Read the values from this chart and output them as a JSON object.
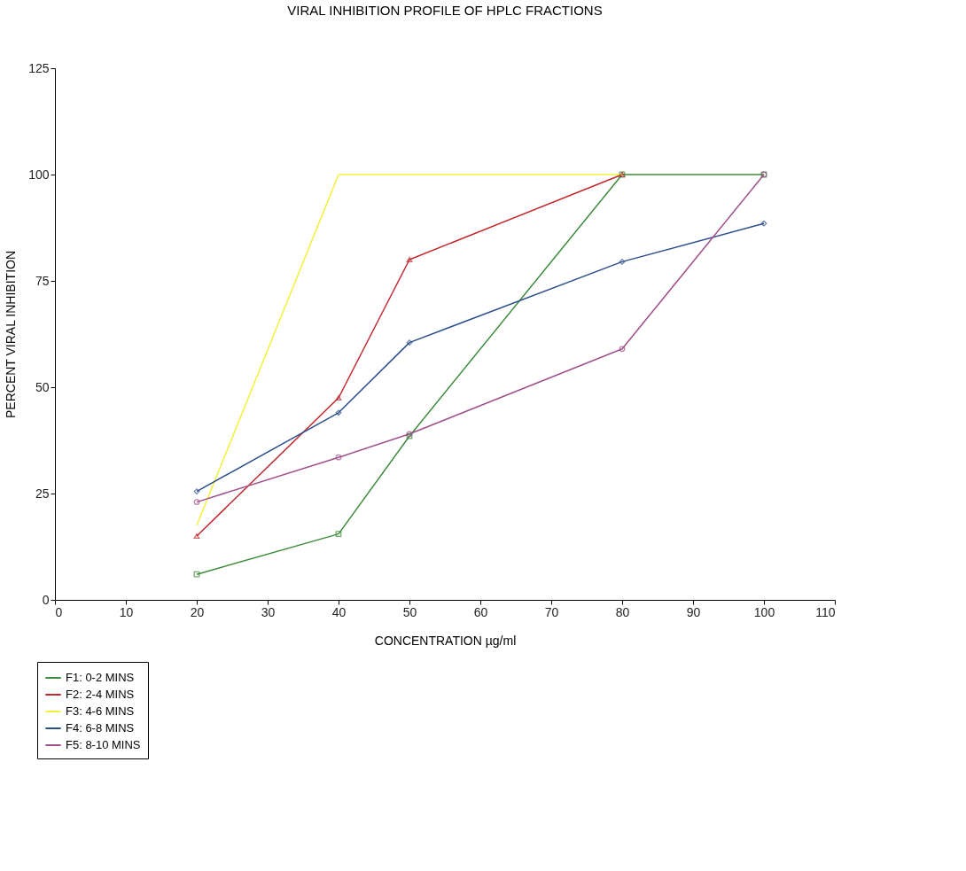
{
  "chart_data": {
    "type": "line",
    "title": "VIRAL INHIBITION PROFILE OF HPLC FRACTIONS",
    "xlabel": "CONCENTRATION µg/ml",
    "ylabel": "PERCENT VIRAL INHIBITION",
    "x": [
      20,
      40,
      50,
      80,
      100
    ],
    "series": [
      {
        "name": "F1: 0-2 MINS",
        "color": "#3a8a3a",
        "marker": "square",
        "values": [
          6,
          15.5,
          38.5,
          100,
          100
        ]
      },
      {
        "name": "F2: 2-4 MINS",
        "color": "#c0282d",
        "marker": "triangle",
        "values": [
          15,
          47.5,
          80,
          100,
          null
        ]
      },
      {
        "name": "F3: 4-6 MINS",
        "color": "#f0f03c",
        "marker": "none",
        "values": [
          17.5,
          100,
          100,
          100,
          null
        ]
      },
      {
        "name": "F4: 6-8 MINS",
        "color": "#2c4f8c",
        "marker": "diamond",
        "values": [
          25.5,
          44,
          60.5,
          79.5,
          88.5
        ]
      },
      {
        "name": "F5: 8-10 MINS",
        "color": "#a0508a",
        "marker": "circle",
        "values": [
          23,
          33.5,
          39,
          59,
          100
        ]
      }
    ],
    "xlim": [
      0,
      110
    ],
    "xticks": [
      0,
      10,
      20,
      30,
      40,
      50,
      60,
      70,
      80,
      90,
      100,
      110
    ],
    "ylim": [
      0,
      125
    ],
    "yticks": [
      0,
      25,
      50,
      75,
      100,
      125
    ],
    "grid": false,
    "legend": "bottom left",
    "line_style": "solid"
  }
}
